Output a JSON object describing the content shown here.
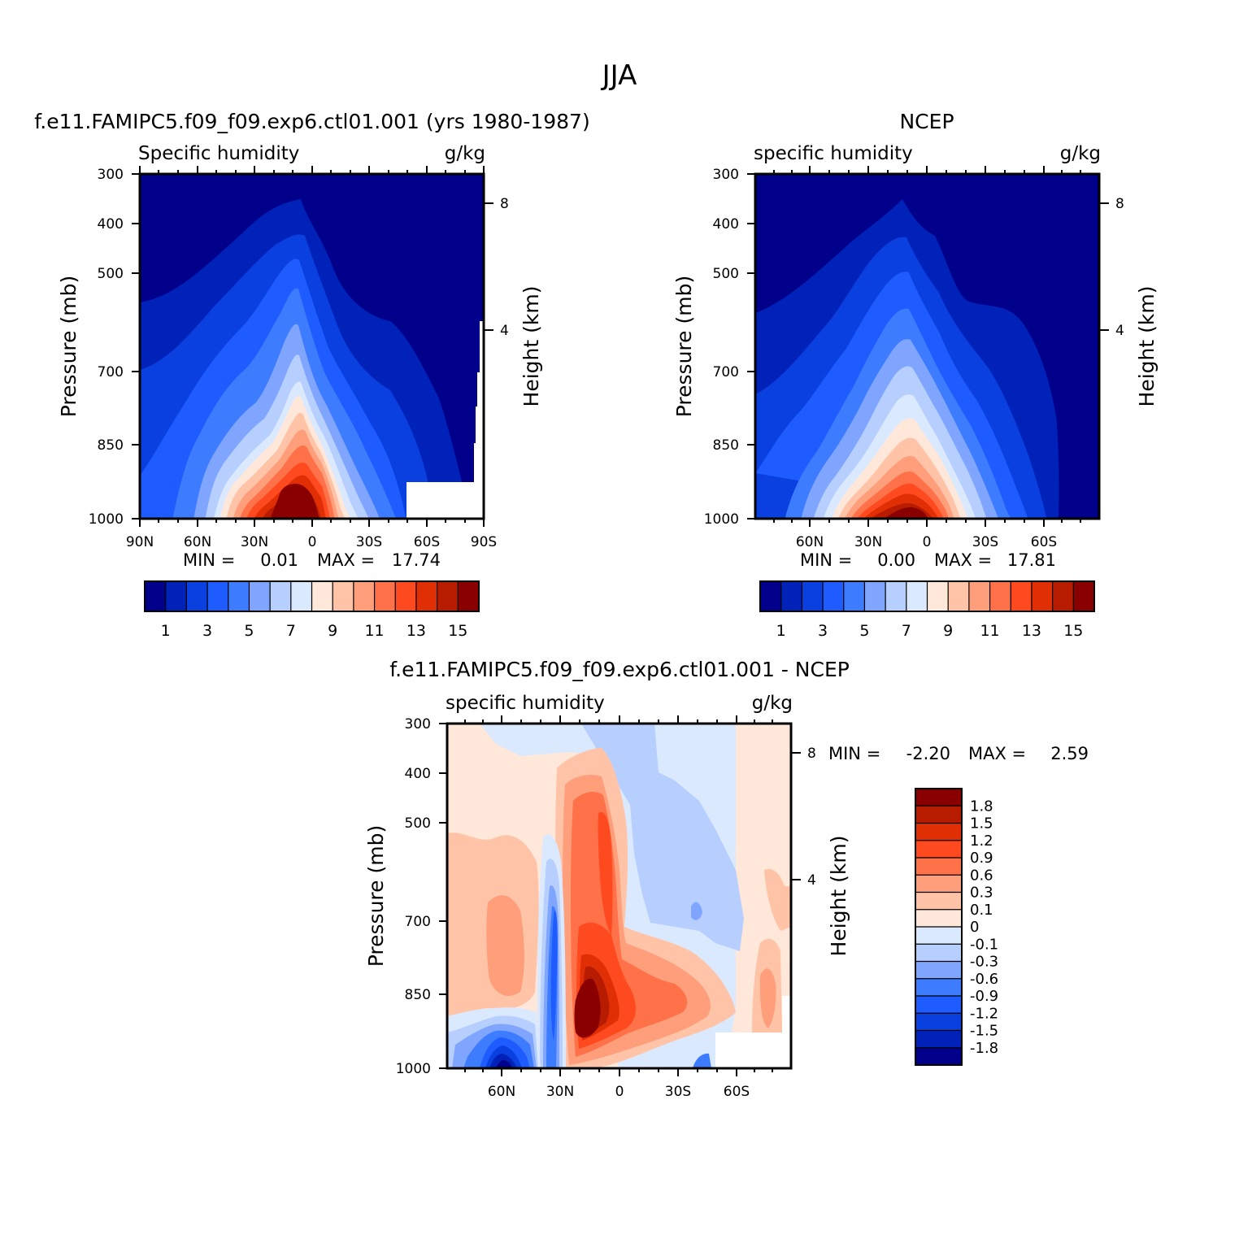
{
  "figure": {
    "title": "JJA"
  },
  "chart_data": [
    {
      "type": "heatmap",
      "title": "f.e11.FAMIPC5.f09_f09.exp6.ctl01.001 (yrs 1980-1987)",
      "left_label": "Specific humidity",
      "units": "g/kg",
      "ylabel": "Pressure (mb)",
      "y2label": "Height (km)",
      "xticks": [
        "90N",
        "60N",
        "30N",
        "0",
        "30S",
        "60S",
        "90S"
      ],
      "yticks": [
        "300",
        "400",
        "500",
        "700",
        "850",
        "1000"
      ],
      "y2ticks": [
        "8",
        "4"
      ],
      "xlim": [
        -90,
        90
      ],
      "ylim": [
        1000,
        300
      ],
      "min_label": "MIN =",
      "min": "0.01",
      "max_label": "MAX =",
      "max": "17.74",
      "colorbar": {
        "orientation": "horizontal",
        "levels": [
          1,
          2,
          3,
          4,
          5,
          6,
          7,
          8,
          9,
          10,
          11,
          12,
          13,
          14,
          15
        ],
        "labels": [
          "1",
          "3",
          "5",
          "7",
          "9",
          "11",
          "13",
          "15"
        ],
        "colors": [
          "#00008a",
          "#0022b8",
          "#0a3fe0",
          "#1e5cff",
          "#3d7cff",
          "#7fa5ff",
          "#b7cfff",
          "#dbe9ff",
          "#ffe7d9",
          "#ffc4a8",
          "#ff9e7a",
          "#ff7149",
          "#ff4a20",
          "#e02e05",
          "#b71c00",
          "#8a0000"
        ]
      }
    },
    {
      "type": "heatmap",
      "title": "NCEP",
      "left_label": "specific humidity",
      "units": "g/kg",
      "ylabel": "Pressure (mb)",
      "y2label": "Height (km)",
      "xticks": [
        "60N",
        "30N",
        "0",
        "30S",
        "60S"
      ],
      "yticks": [
        "300",
        "400",
        "500",
        "700",
        "850",
        "1000"
      ],
      "y2ticks": [
        "8",
        "4"
      ],
      "xlim": [
        -90,
        90
      ],
      "ylim": [
        1000,
        300
      ],
      "min_label": "MIN =",
      "min": "0.00",
      "max_label": "MAX =",
      "max": "17.81",
      "colorbar": {
        "orientation": "horizontal",
        "levels": [
          1,
          2,
          3,
          4,
          5,
          6,
          7,
          8,
          9,
          10,
          11,
          12,
          13,
          14,
          15
        ],
        "labels": [
          "1",
          "3",
          "5",
          "7",
          "9",
          "11",
          "13",
          "15"
        ],
        "colors": [
          "#00008a",
          "#0022b8",
          "#0a3fe0",
          "#1e5cff",
          "#3d7cff",
          "#7fa5ff",
          "#b7cfff",
          "#dbe9ff",
          "#ffe7d9",
          "#ffc4a8",
          "#ff9e7a",
          "#ff7149",
          "#ff4a20",
          "#e02e05",
          "#b71c00",
          "#8a0000"
        ]
      }
    },
    {
      "type": "heatmap",
      "title": "f.e11.FAMIPC5.f09_f09.exp6.ctl01.001 - NCEP",
      "left_label": "specific humidity",
      "units": "g/kg",
      "ylabel": "Pressure (mb)",
      "y2label": "Height (km)",
      "xticks": [
        "60N",
        "30N",
        "0",
        "30S",
        "60S"
      ],
      "yticks": [
        "300",
        "400",
        "500",
        "700",
        "850",
        "1000"
      ],
      "y2ticks": [
        "8",
        "4"
      ],
      "xlim": [
        -90,
        90
      ],
      "ylim": [
        1000,
        300
      ],
      "min_label": "MIN =",
      "min": "-2.20",
      "max_label": "MAX =",
      "max": "2.59",
      "colorbar": {
        "orientation": "vertical",
        "labels": [
          "1.8",
          "1.5",
          "1.2",
          "0.9",
          "0.6",
          "0.3",
          "0.1",
          "0",
          "-0.1",
          "-0.3",
          "-0.6",
          "-0.9",
          "-1.2",
          "-1.5",
          "-1.8"
        ],
        "colors": [
          "#8a0000",
          "#b71c00",
          "#e02e05",
          "#ff4a20",
          "#ff7149",
          "#ff9e7a",
          "#ffc4a8",
          "#ffe7d9",
          "#dbe9ff",
          "#b7cfff",
          "#7fa5ff",
          "#3d7cff",
          "#1e5cff",
          "#0a3fe0",
          "#0022b8",
          "#00008a"
        ]
      }
    }
  ]
}
